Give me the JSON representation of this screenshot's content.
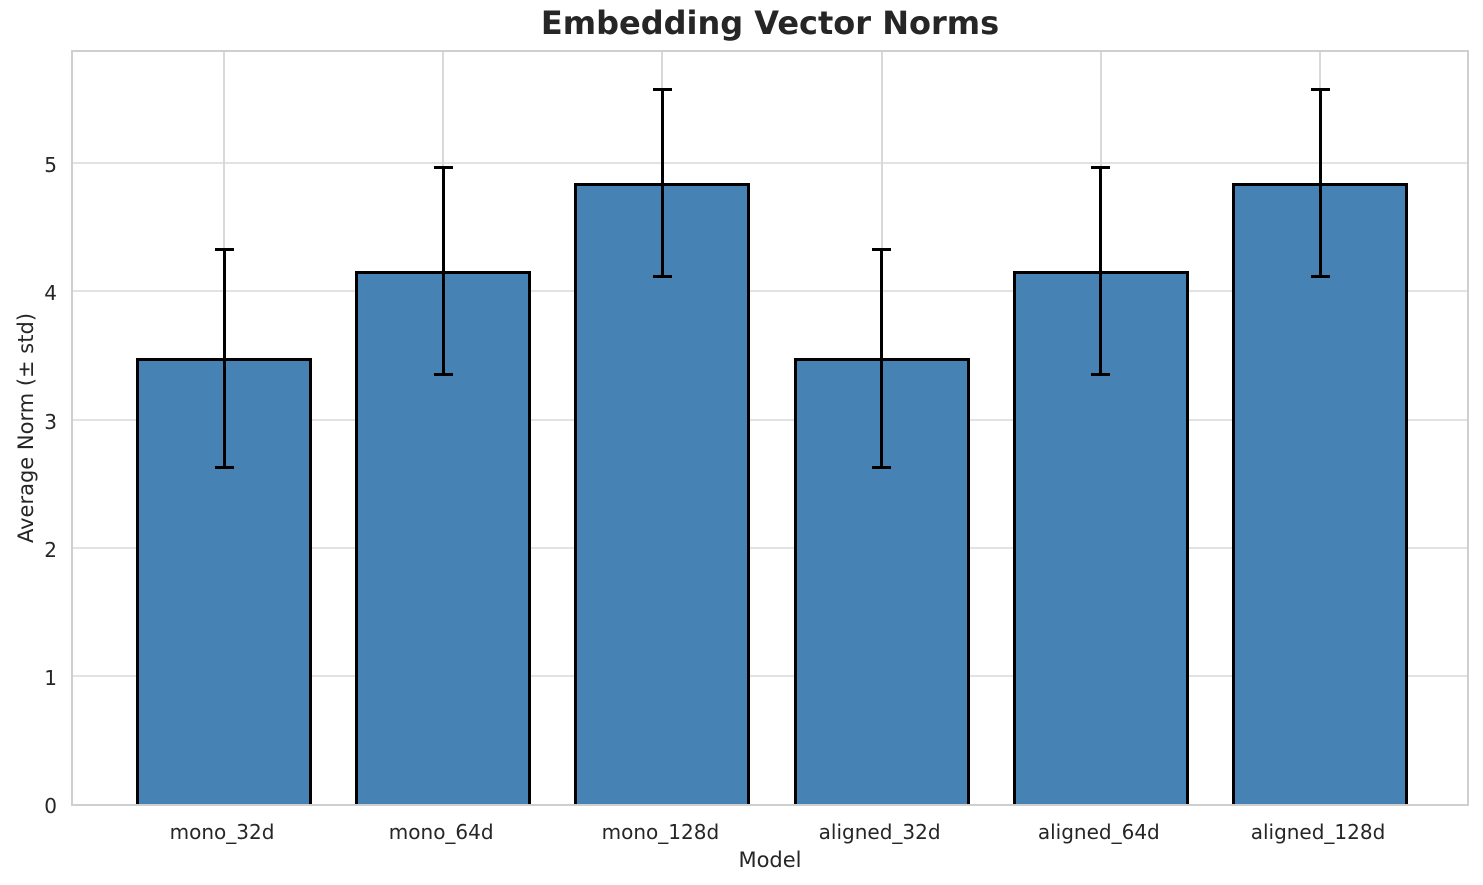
{
  "chart_data": {
    "type": "bar",
    "title": "Embedding Vector Norms",
    "xlabel": "Model",
    "ylabel": "Average Norm (± std)",
    "categories": [
      "mono_32d",
      "mono_64d",
      "mono_128d",
      "aligned_32d",
      "aligned_64d",
      "aligned_128d"
    ],
    "series": [
      {
        "name": "Average Norm",
        "values": [
          3.48,
          4.16,
          4.85,
          3.48,
          4.16,
          4.85
        ],
        "errors": [
          0.85,
          0.81,
          0.73,
          0.85,
          0.81,
          0.73
        ]
      }
    ],
    "yticks": [
      0,
      1,
      2,
      3,
      4,
      5
    ],
    "ylim": [
      0,
      5.9
    ],
    "grid": true,
    "legend_position": "none",
    "bar_color": "#4682b4",
    "bar_edge_color": "#000000",
    "error_bar_color": "#000000",
    "grid_color": "#dcdcdc",
    "text_color": "#262626"
  }
}
